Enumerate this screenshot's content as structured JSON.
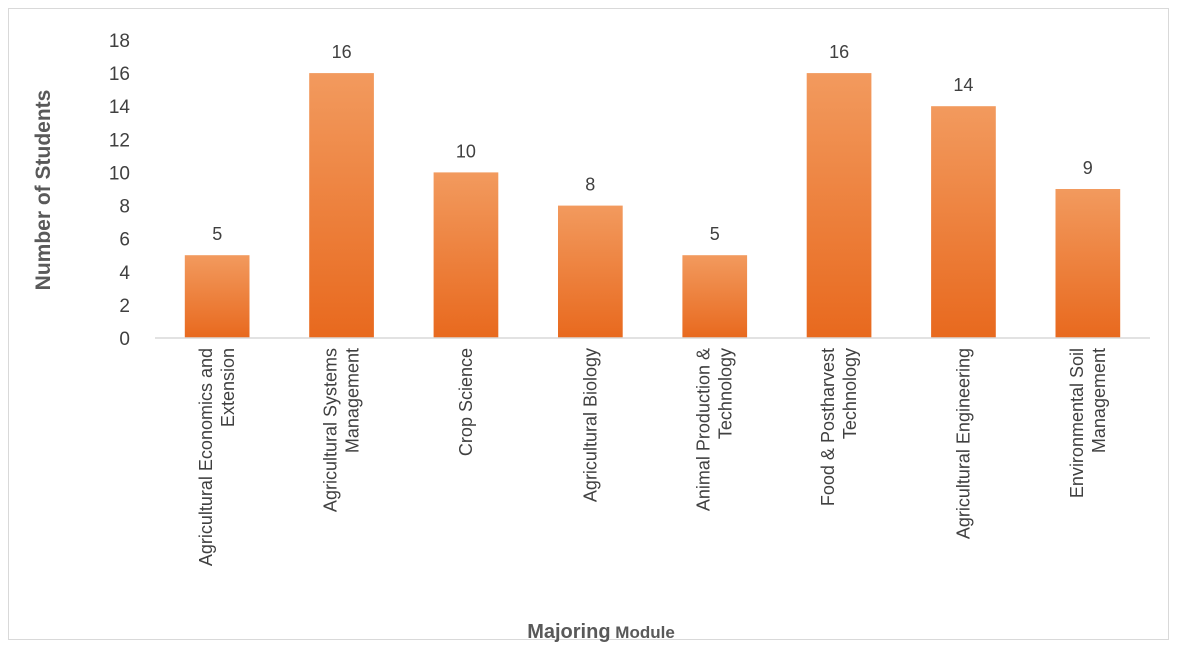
{
  "chart_data": {
    "type": "bar",
    "categories": [
      [
        "Agricultural Economics and",
        "Extension"
      ],
      [
        "Agricultural Systems",
        "Management"
      ],
      [
        "Crop Science"
      ],
      [
        "Agricultural Biology"
      ],
      [
        "Animal Production &",
        "Technology"
      ],
      [
        "Food & Postharvest",
        "Technology"
      ],
      [
        "Agricultural Engineering"
      ],
      [
        "Environmental Soil",
        "Management"
      ]
    ],
    "values": [
      5,
      16,
      10,
      8,
      5,
      16,
      14,
      9
    ],
    "data_labels": [
      "5",
      "16",
      "10",
      "8",
      "5",
      "16",
      "14",
      "9"
    ],
    "ylim": [
      0,
      18
    ],
    "yticks": [
      0,
      2,
      4,
      6,
      8,
      10,
      12,
      14,
      16,
      18
    ],
    "xlabel": {
      "main": "Majoring",
      "rest": " Module"
    },
    "ylabel": "Number of Students",
    "grid": false,
    "legend": "none",
    "colors": {
      "bar_top": "#f29a5e",
      "bar_bottom": "#e8691e",
      "axis": "#d9d9d9",
      "text": "#404040",
      "title": "#595959"
    }
  }
}
